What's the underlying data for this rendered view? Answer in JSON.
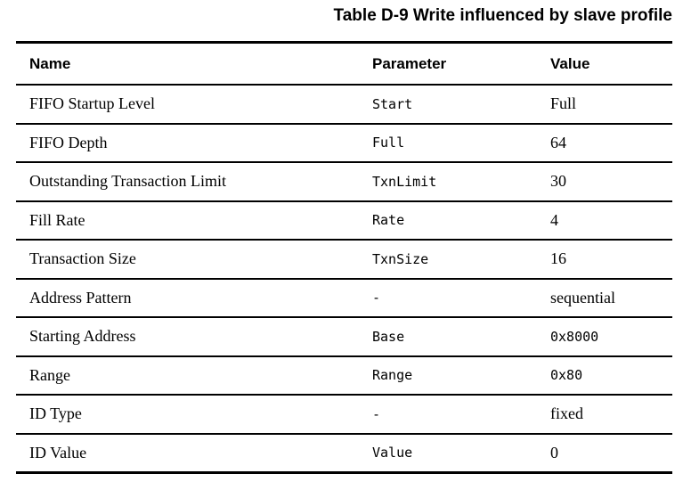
{
  "title": "Table D-9 Write influenced by slave profile",
  "colors": {
    "text": "#000000",
    "rule": "#000000",
    "background": "#ffffff"
  },
  "table": {
    "columns": [
      {
        "label": "Name"
      },
      {
        "label": "Parameter"
      },
      {
        "label": "Value"
      }
    ],
    "rows": [
      {
        "name": "FIFO Startup Level",
        "parameter": "Start",
        "value": "Full",
        "value_is_code": false
      },
      {
        "name": "FIFO Depth",
        "parameter": "Full",
        "value": "64",
        "value_is_code": false
      },
      {
        "name": "Outstanding Transaction Limit",
        "parameter": "TxnLimit",
        "value": "30",
        "value_is_code": false
      },
      {
        "name": "Fill Rate",
        "parameter": "Rate",
        "value": "4",
        "value_is_code": false
      },
      {
        "name": "Transaction Size",
        "parameter": "TxnSize",
        "value": "16",
        "value_is_code": false
      },
      {
        "name": "Address Pattern",
        "parameter": "-",
        "value": "sequential",
        "value_is_code": false
      },
      {
        "name": "Starting Address",
        "parameter": "Base",
        "value": "0x8000",
        "value_is_code": true
      },
      {
        "name": "Range",
        "parameter": "Range",
        "value": "0x80",
        "value_is_code": true
      },
      {
        "name": "ID Type",
        "parameter": "-",
        "value": "fixed",
        "value_is_code": false
      },
      {
        "name": "ID Value",
        "parameter": "Value",
        "value": "0",
        "value_is_code": false
      }
    ]
  }
}
